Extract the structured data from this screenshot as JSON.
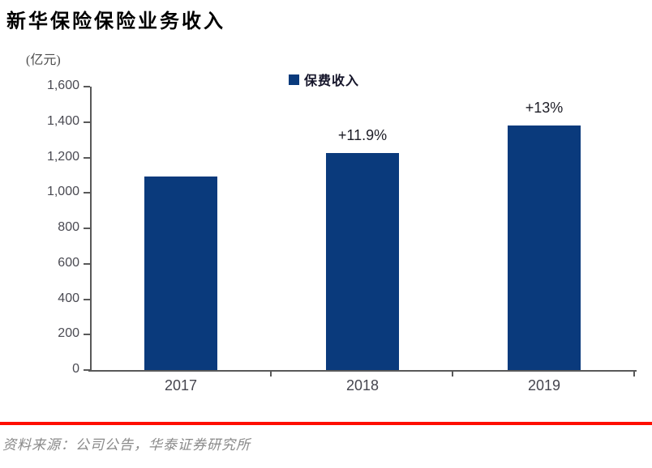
{
  "page": {
    "title": "新华保险保险业务收入",
    "source_note": "资料来源：公司公告，华泰证券研究所"
  },
  "chart_data": {
    "type": "bar",
    "title": "新华保险保险业务收入",
    "unit_label": "(亿元)",
    "legend": [
      "保费收入"
    ],
    "legend_position": "top-center",
    "categories": [
      "2017",
      "2018",
      "2019"
    ],
    "series": [
      {
        "name": "保费收入",
        "values": [
          1093,
          1223,
          1381
        ]
      }
    ],
    "annotations": [
      "",
      "+11.9%",
      "+13%"
    ],
    "ylim": [
      0,
      1600
    ],
    "yticks": [
      0,
      200,
      400,
      600,
      800,
      1000,
      1200,
      1400,
      1600
    ],
    "ytick_labels": [
      "0",
      "200",
      "400",
      "600",
      "800",
      "1,000",
      "1,200",
      "1,400",
      "1,600"
    ],
    "grid": false,
    "bar_color": "#0A3A7C",
    "axis_color": "#595959",
    "tick_text_color": "#4A4A52",
    "annotation_text_color": "#1D1D26"
  },
  "colors": {
    "divider_red": "#FF0E00",
    "source_text": "#8A8A8A"
  }
}
